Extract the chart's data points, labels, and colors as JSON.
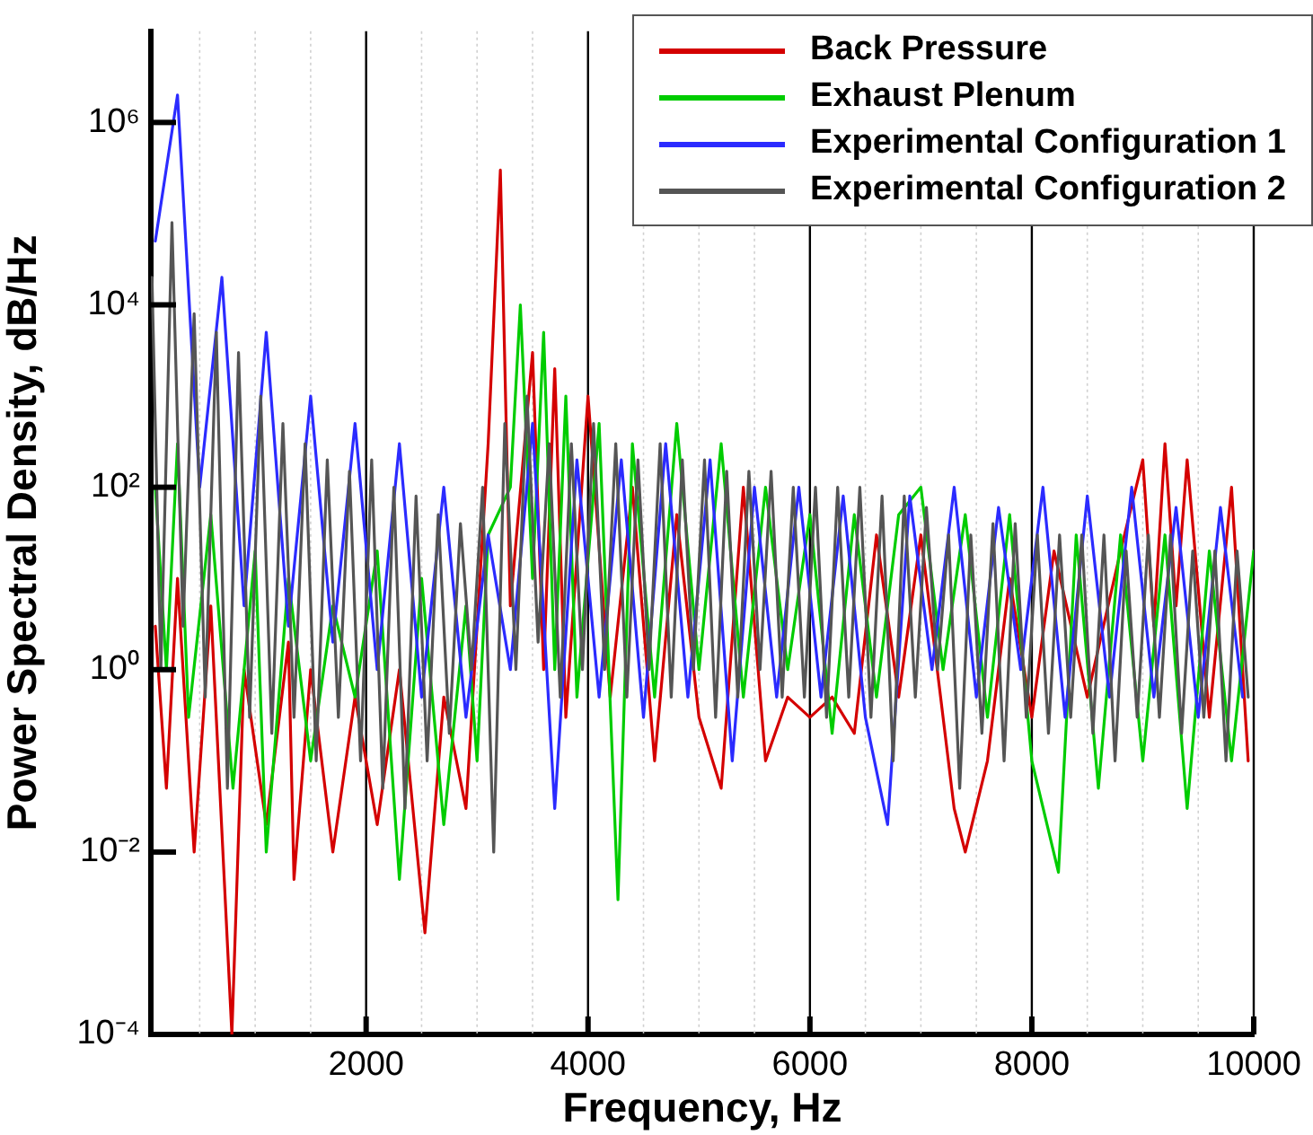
{
  "chart_data": {
    "type": "line",
    "xlabel": "Frequency, Hz",
    "ylabel": "Power Spectral Density, dB/Hz",
    "log": "y",
    "grid": "x",
    "legend": "top right",
    "xlim": [
      60,
      10000
    ],
    "ylim": [
      0.0001,
      10000000
    ],
    "xticks": [
      {
        "value": 500,
        "label": null
      },
      {
        "value": 1000,
        "label": null
      },
      {
        "value": 1500,
        "label": null
      },
      2000,
      {
        "value": 2500,
        "label": null
      },
      {
        "value": 3000,
        "label": null
      },
      {
        "value": 3500,
        "label": null
      },
      4000,
      {
        "value": 4500,
        "label": null
      },
      {
        "value": 5000,
        "label": null
      },
      {
        "value": 5500,
        "label": null
      },
      6000,
      {
        "value": 6500,
        "label": null
      },
      {
        "value": 7000,
        "label": null
      },
      {
        "value": 7500,
        "label": null
      },
      8000,
      {
        "value": 8500,
        "label": null
      },
      {
        "value": 9000,
        "label": null
      },
      {
        "value": 9500,
        "label": null
      },
      10000
    ],
    "yticks": [
      {
        "value": 0.0001,
        "label": "10⁻⁴"
      },
      {
        "value": 0.01,
        "label": "10⁻²"
      },
      {
        "value": 1,
        "label": "10⁰"
      },
      {
        "value": 100,
        "label": "10²"
      },
      {
        "value": 10000,
        "label": "10⁴"
      },
      {
        "value": 1000000,
        "label": "10⁶"
      }
    ],
    "series": [
      {
        "name": "Back Pressure",
        "color": "#d40000",
        "x": [
          100,
          200,
          300,
          450,
          600,
          790,
          900,
          1100,
          1300,
          1350,
          1500,
          1700,
          1900,
          2100,
          2300,
          2530,
          2700,
          2900,
          3100,
          3210,
          3300,
          3500,
          3600,
          3700,
          3800,
          4000,
          4200,
          4400,
          4600,
          4800,
          5000,
          5200,
          5400,
          5600,
          5800,
          6000,
          6200,
          6400,
          6600,
          6800,
          7000,
          7300,
          7400,
          7600,
          7800,
          8000,
          8200,
          8500,
          8800,
          9000,
          9100,
          9200,
          9300,
          9400,
          9600,
          9800,
          9950
        ],
        "values": [
          3,
          0.05,
          10,
          0.01,
          5,
          0.0001,
          1,
          0.02,
          2,
          0.005,
          1,
          0.01,
          0.5,
          0.02,
          1,
          0.0013,
          0.5,
          0.03,
          300,
          300000,
          5,
          3000,
          1,
          2000,
          0.3,
          1000,
          0.5,
          100,
          0.1,
          50,
          0.3,
          0.05,
          100,
          0.1,
          0.5,
          0.3,
          0.5,
          0.2,
          30,
          0.5,
          30,
          0.03,
          0.01,
          0.1,
          10,
          0.3,
          20,
          0.5,
          20,
          200,
          3,
          300,
          5,
          200,
          0.3,
          100,
          0.1
        ]
      },
      {
        "name": "Exhaust Plenum",
        "color": "#00cc00",
        "x": [
          100,
          200,
          300,
          400,
          600,
          800,
          1000,
          1100,
          1300,
          1500,
          1700,
          1900,
          2100,
          2300,
          2500,
          2700,
          2900,
          3000,
          3100,
          3300,
          3390,
          3500,
          3600,
          3700,
          3800,
          3900,
          4100,
          4270,
          4400,
          4600,
          4800,
          5000,
          5200,
          5400,
          5600,
          5800,
          6000,
          6200,
          6400,
          6600,
          6800,
          7000,
          7200,
          7400,
          7600,
          7800,
          8000,
          8240,
          8400,
          8600,
          8800,
          9000,
          9200,
          9400,
          9600,
          9800,
          10000
        ],
        "values": [
          100,
          1,
          300,
          0.3,
          50,
          0.05,
          20,
          0.01,
          10,
          0.1,
          5,
          0.5,
          20,
          0.005,
          10,
          0.02,
          5,
          0.1,
          30,
          100,
          10000,
          10,
          5000,
          1,
          1000,
          0.5,
          500,
          0.003,
          300,
          0.5,
          500,
          1,
          300,
          0.5,
          100,
          1,
          50,
          0.2,
          50,
          0.5,
          50,
          100,
          1,
          50,
          0.3,
          50,
          0.1,
          0.006,
          30,
          0.05,
          30,
          0.1,
          30,
          0.03,
          20,
          0.1,
          20
        ]
      },
      {
        "name": "Experimental Configuration 1",
        "color": "#2b2bff",
        "x": [
          100,
          300,
          500,
          700,
          900,
          1100,
          1300,
          1500,
          1700,
          1900,
          2100,
          2300,
          2500,
          2700,
          2900,
          3100,
          3300,
          3500,
          3700,
          3900,
          4100,
          4300,
          4500,
          4700,
          4900,
          5100,
          5300,
          5500,
          5700,
          5900,
          6100,
          6300,
          6500,
          6700,
          6900,
          7100,
          7300,
          7500,
          7700,
          7900,
          8100,
          8300,
          8500,
          8700,
          8900,
          9100,
          9300,
          9500,
          9700,
          9900
        ],
        "values": [
          50000,
          2000000,
          100,
          20000,
          5,
          5000,
          3,
          1000,
          2,
          500,
          1,
          300,
          0.5,
          100,
          0.3,
          30,
          1,
          500,
          0.03,
          200,
          0.5,
          200,
          0.3,
          300,
          0.5,
          200,
          0.1,
          100,
          0.5,
          100,
          0.5,
          80,
          0.3,
          0.02,
          80,
          1,
          100,
          0.5,
          60,
          1,
          100,
          0.3,
          80,
          0.5,
          100,
          0.5,
          60,
          0.3,
          60,
          0.5
        ]
      },
      {
        "name": "Experimental Configuration 2",
        "color": "#555555",
        "x": [
          70,
          150,
          250,
          350,
          450,
          550,
          650,
          750,
          850,
          950,
          1050,
          1150,
          1250,
          1350,
          1450,
          1550,
          1650,
          1750,
          1850,
          1950,
          2050,
          2150,
          2250,
          2350,
          2450,
          2550,
          2650,
          2750,
          2850,
          2950,
          3050,
          3150,
          3250,
          3350,
          3450,
          3550,
          3650,
          3750,
          3850,
          3950,
          4050,
          4150,
          4250,
          4350,
          4450,
          4550,
          4650,
          4750,
          4850,
          4950,
          5050,
          5150,
          5250,
          5350,
          5450,
          5550,
          5650,
          5750,
          5850,
          5950,
          6050,
          6150,
          6250,
          6350,
          6450,
          6550,
          6650,
          6750,
          6850,
          6950,
          7050,
          7150,
          7250,
          7350,
          7450,
          7550,
          7650,
          7750,
          7850,
          7950,
          8050,
          8150,
          8250,
          8350,
          8450,
          8550,
          8650,
          8750,
          8850,
          8950,
          9050,
          9150,
          9250,
          9350,
          9450,
          9550,
          9650,
          9750,
          9850,
          9950
        ],
        "values": [
          20000,
          1,
          80000,
          3,
          8000,
          0.5,
          5000,
          0.05,
          3000,
          0.3,
          1000,
          0.2,
          500,
          0.3,
          300,
          0.1,
          200,
          0.3,
          150,
          0.1,
          200,
          0.05,
          100,
          0.03,
          80,
          0.1,
          50,
          0.2,
          40,
          1,
          100,
          0.01,
          500,
          1,
          1000,
          2,
          300,
          0.5,
          300,
          1,
          500,
          1,
          300,
          0.5,
          200,
          1,
          300,
          0.5,
          200,
          1,
          200,
          0.3,
          150,
          0.5,
          150,
          1,
          150,
          0.5,
          100,
          0.5,
          100,
          0.3,
          100,
          0.5,
          100,
          0.3,
          80,
          0.1,
          80,
          0.5,
          60,
          1,
          30,
          0.05,
          30,
          0.2,
          40,
          0.1,
          40,
          0.3,
          30,
          0.2,
          30,
          0.3,
          30,
          0.2,
          30,
          0.1,
          20,
          0.3,
          30,
          0.3,
          30,
          0.2,
          20,
          0.3,
          20,
          0.1,
          20,
          0.5
        ]
      }
    ]
  }
}
